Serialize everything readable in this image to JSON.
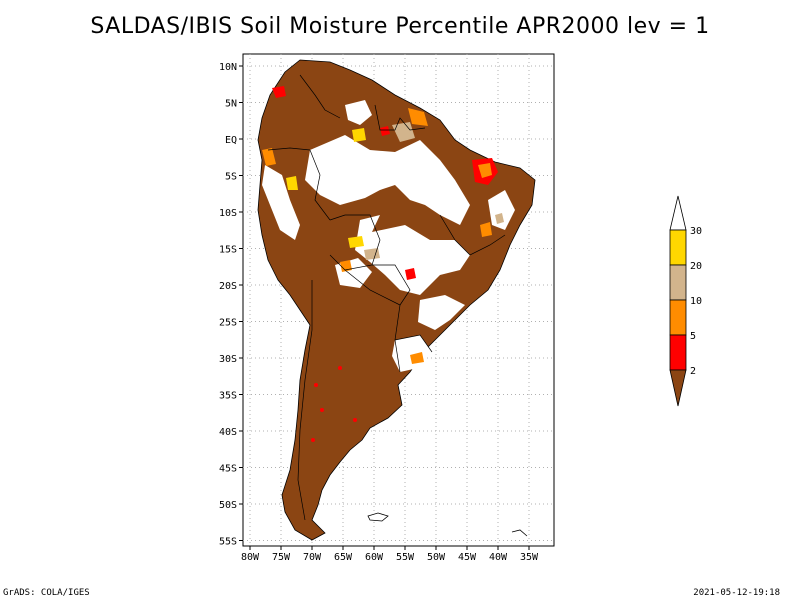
{
  "title": "SALDAS/IBIS Soil Moisture Percentile APR2000 lev = 1",
  "map": {
    "region": "South America",
    "lat_labels": [
      "10N",
      "5N",
      "EQ",
      "5S",
      "10S",
      "15S",
      "20S",
      "25S",
      "30S",
      "35S",
      "40S",
      "45S",
      "50S",
      "55S"
    ],
    "lon_labels": [
      "80W",
      "75W",
      "70W",
      "65W",
      "60W",
      "55W",
      "50W",
      "45W",
      "40W",
      "35W"
    ]
  },
  "legend": {
    "bins": [
      {
        "label": "2",
        "color": "#8B4513"
      },
      {
        "label": "5",
        "color": "#FF0000"
      },
      {
        "label": "10",
        "color": "#FF8C00"
      },
      {
        "label": "20",
        "color": "#D2B48C"
      },
      {
        "label": "30",
        "color": "#FFD700"
      }
    ],
    "top_color": "#ffffff"
  },
  "colors": {
    "dry": "#8B4513",
    "land_outline": "#000000",
    "grid": "#b0b0b0"
  },
  "footer": {
    "left": "GrADS: COLA/IGES",
    "right": "2021-05-12-19:18"
  }
}
